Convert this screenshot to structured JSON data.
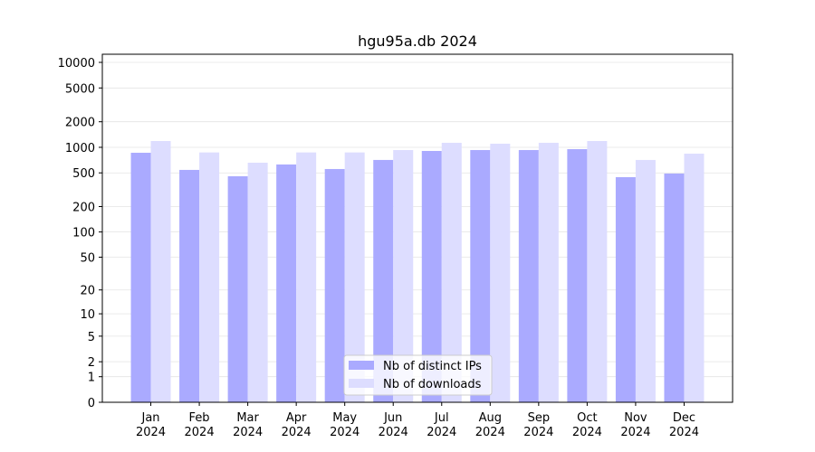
{
  "chart_data": {
    "type": "bar",
    "title": "hgu95a.db 2024",
    "categories": [
      "Jan\n2024",
      "Feb\n2024",
      "Mar\n2024",
      "Apr\n2024",
      "May\n2024",
      "Jun\n2024",
      "Jul\n2024",
      "Aug\n2024",
      "Sep\n2024",
      "Oct\n2024",
      "Nov\n2024",
      "Dec\n2024"
    ],
    "series": [
      {
        "name": "Nb of distinct IPs",
        "color": "#aaaaff",
        "values": [
          863,
          542,
          456,
          628,
          555,
          710,
          906,
          929,
          929,
          952,
          445,
          491
        ]
      },
      {
        "name": "Nb of downloads",
        "color": "#ddddff",
        "values": [
          1186,
          870,
          659,
          870,
          870,
          929,
          1130,
          1104,
          1130,
          1186,
          710,
          843
        ]
      }
    ],
    "scale": "log1p",
    "ylim": [
      0,
      12470
    ],
    "yticks": [
      0,
      1,
      2,
      5,
      10,
      20,
      50,
      100,
      200,
      500,
      1000,
      2000,
      5000,
      10000
    ],
    "grid": true,
    "legend": "lower center"
  }
}
